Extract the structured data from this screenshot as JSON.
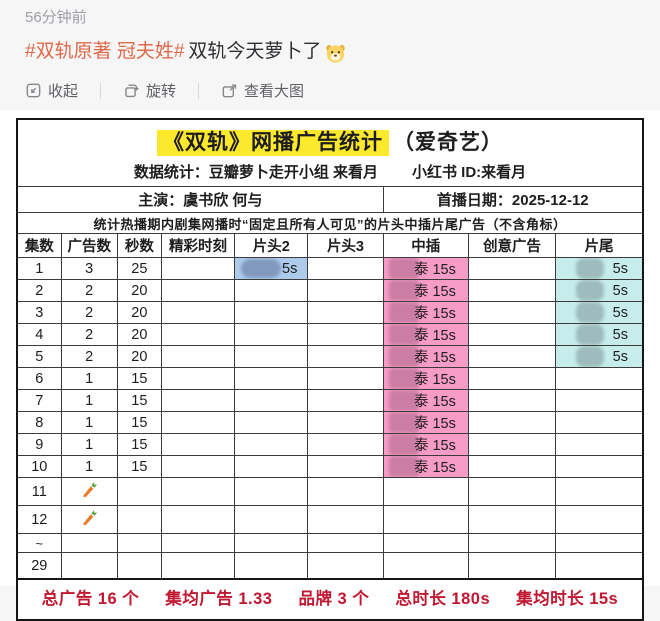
{
  "post": {
    "timestamp": "56分钟前",
    "hashtag": "#双轨原著 冠夫姓#",
    "title_text": "双轨今天萝卜了",
    "title_emoji": "dog-face",
    "toolbar": {
      "collapse": "收起",
      "rotate": "旋转",
      "view_large": "查看大图"
    }
  },
  "table": {
    "title": "《双轨》网播广告统计",
    "title_suffix": "（爱奇艺）",
    "stats_by": "数据统计：豆瓣萝卜走开小组 来看月",
    "xhs_id": "小红书 ID:来看月",
    "cast": "主演：虞书欣 何与",
    "premiere": "首播日期：2025-12-12",
    "note": "统计热播期内剧集网播时“固定且所有人可见”的片头中插片尾广告（不含角标）",
    "columns": [
      "集数",
      "广告数",
      "秒数",
      "精彩时刻",
      "片头2",
      "片头3",
      "中插",
      "创意广告",
      "片尾"
    ],
    "rows": [
      [
        "1",
        "3",
        "25",
        "",
        {
          "t": "5s",
          "hl": "blue"
        },
        "",
        {
          "t": "泰 15s",
          "hl": "pink"
        },
        "",
        {
          "t": "5s",
          "hl": "cyan"
        }
      ],
      [
        "2",
        "2",
        "20",
        "",
        "",
        "",
        {
          "t": "泰 15s",
          "hl": "pink"
        },
        "",
        {
          "t": "5s",
          "hl": "cyan"
        }
      ],
      [
        "3",
        "2",
        "20",
        "",
        "",
        "",
        {
          "t": "泰 15s",
          "hl": "pink"
        },
        "",
        {
          "t": "5s",
          "hl": "cyan"
        }
      ],
      [
        "4",
        "2",
        "20",
        "",
        "",
        "",
        {
          "t": "泰 15s",
          "hl": "pink"
        },
        "",
        {
          "t": "5s",
          "hl": "cyan"
        }
      ],
      [
        "5",
        "2",
        "20",
        "",
        "",
        "",
        {
          "t": "泰 15s",
          "hl": "pink"
        },
        "",
        {
          "t": "5s",
          "hl": "cyan"
        }
      ],
      [
        "6",
        "1",
        "15",
        "",
        "",
        "",
        {
          "t": "泰 15s",
          "hl": "pink"
        },
        "",
        ""
      ],
      [
        "7",
        "1",
        "15",
        "",
        "",
        "",
        {
          "t": "泰 15s",
          "hl": "pink"
        },
        "",
        ""
      ],
      [
        "8",
        "1",
        "15",
        "",
        "",
        "",
        {
          "t": "泰 15s",
          "hl": "pink"
        },
        "",
        ""
      ],
      [
        "9",
        "1",
        "15",
        "",
        "",
        "",
        {
          "t": "泰 15s",
          "hl": "pink"
        },
        "",
        ""
      ],
      [
        "10",
        "1",
        "15",
        "",
        "",
        "",
        {
          "t": "泰 15s",
          "hl": "pink"
        },
        "",
        ""
      ],
      [
        "11",
        {
          "icon": "carrot"
        },
        "",
        "",
        "",
        "",
        "",
        "",
        ""
      ],
      [
        "12",
        {
          "icon": "carrot"
        },
        "",
        "",
        "",
        "",
        "",
        "",
        ""
      ],
      [
        "~",
        "",
        "",
        "",
        "",
        "",
        "",
        "",
        ""
      ],
      [
        "29",
        "",
        "",
        "",
        "",
        "",
        "",
        "",
        ""
      ]
    ],
    "summary_parts": [
      "总广告 16 个",
      "集均广告 1.33",
      "品牌 3 个",
      "总时长 180s",
      "集均时长 15s"
    ]
  },
  "colors": {
    "highlight_yellow": "#fde92c",
    "ad_pink": "#f79cc6",
    "ad_blue": "#aecbec",
    "ad_cyan": "#c7ecec",
    "summary_red": "#c11730",
    "hashtag_orange": "#e0694a"
  }
}
